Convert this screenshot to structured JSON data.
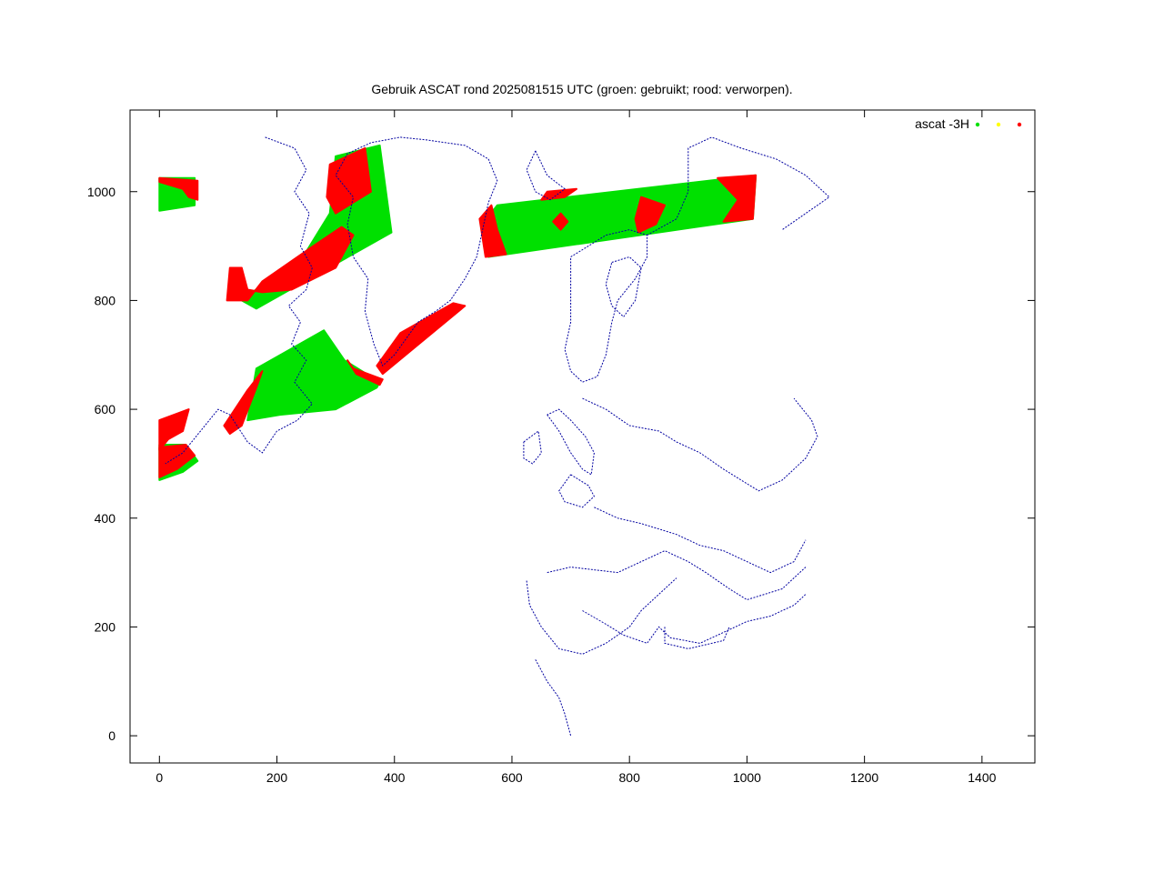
{
  "chart_data": {
    "type": "scatter",
    "title": "Gebruik ASCAT rond 2025081515 UTC (groen: gebruikt; rood: verworpen).",
    "xlabel": "",
    "ylabel": "",
    "xlim": [
      -50,
      1490
    ],
    "ylim": [
      -50,
      1150
    ],
    "x_ticks": [
      "0",
      "200",
      "400",
      "600",
      "800",
      "1000",
      "1200",
      "1400"
    ],
    "y_ticks": [
      "0",
      "200",
      "400",
      "600",
      "800",
      "1000"
    ],
    "grid": false,
    "legend_position": "top-right",
    "legend": {
      "label": "ascat -3H"
    },
    "series": [
      {
        "color": "#00e000"
      },
      {
        "color": "#ffff00"
      },
      {
        "color": "#ff0000"
      }
    ],
    "coastline_color": "#0000a0",
    "swaths": [
      {
        "status": "used",
        "polygon": [
          [
            0,
            1025
          ],
          [
            60,
            1025
          ],
          [
            60,
            975
          ],
          [
            0,
            965
          ]
        ]
      },
      {
        "status": "rejected",
        "polygon": [
          [
            0,
            1025
          ],
          [
            65,
            1020
          ],
          [
            65,
            985
          ],
          [
            50,
            990
          ],
          [
            40,
            1005
          ],
          [
            0,
            1018
          ]
        ]
      },
      {
        "status": "used",
        "polygon": [
          [
            300,
            1065
          ],
          [
            375,
            1085
          ],
          [
            395,
            925
          ],
          [
            165,
            785
          ],
          [
            140,
            800
          ],
          [
            250,
            890
          ],
          [
            290,
            960
          ]
        ]
      },
      {
        "status": "rejected",
        "polygon": [
          [
            120,
            860
          ],
          [
            140,
            860
          ],
          [
            150,
            820
          ],
          [
            175,
            815
          ],
          [
            225,
            820
          ],
          [
            300,
            860
          ],
          [
            330,
            920
          ],
          [
            310,
            935
          ],
          [
            255,
            895
          ],
          [
            175,
            835
          ],
          [
            150,
            800
          ],
          [
            115,
            800
          ]
        ]
      },
      {
        "status": "rejected",
        "polygon": [
          [
            290,
            1050
          ],
          [
            350,
            1080
          ],
          [
            360,
            1000
          ],
          [
            330,
            980
          ],
          [
            300,
            960
          ],
          [
            285,
            990
          ]
        ]
      },
      {
        "status": "used",
        "polygon": [
          [
            165,
            675
          ],
          [
            280,
            745
          ],
          [
            315,
            690
          ],
          [
            375,
            650
          ],
          [
            370,
            640
          ],
          [
            300,
            600
          ],
          [
            205,
            590
          ],
          [
            150,
            580
          ]
        ]
      },
      {
        "status": "rejected",
        "polygon": [
          [
            150,
            635
          ],
          [
            175,
            670
          ],
          [
            165,
            640
          ],
          [
            140,
            570
          ],
          [
            120,
            555
          ],
          [
            110,
            570
          ]
        ]
      },
      {
        "status": "rejected",
        "polygon": [
          [
            330,
            675
          ],
          [
            380,
            655
          ],
          [
            375,
            645
          ],
          [
            335,
            665
          ],
          [
            320,
            690
          ]
        ]
      },
      {
        "status": "rejected",
        "polygon": [
          [
            380,
            665
          ],
          [
            520,
            790
          ],
          [
            500,
            795
          ],
          [
            410,
            740
          ],
          [
            370,
            680
          ]
        ]
      },
      {
        "status": "used",
        "polygon": [
          [
            0,
            535
          ],
          [
            45,
            535
          ],
          [
            65,
            505
          ],
          [
            40,
            485
          ],
          [
            0,
            470
          ]
        ]
      },
      {
        "status": "rejected",
        "polygon": [
          [
            0,
            580
          ],
          [
            50,
            600
          ],
          [
            40,
            560
          ],
          [
            15,
            545
          ],
          [
            0,
            525
          ]
        ]
      },
      {
        "status": "rejected",
        "polygon": [
          [
            0,
            530
          ],
          [
            45,
            535
          ],
          [
            60,
            515
          ],
          [
            30,
            490
          ],
          [
            0,
            475
          ]
        ]
      },
      {
        "status": "used",
        "polygon": [
          [
            575,
            975
          ],
          [
            1015,
            1030
          ],
          [
            1010,
            950
          ],
          [
            560,
            880
          ],
          [
            550,
            940
          ]
        ]
      },
      {
        "status": "rejected",
        "polygon": [
          [
            565,
            975
          ],
          [
            575,
            930
          ],
          [
            590,
            885
          ],
          [
            555,
            880
          ],
          [
            545,
            950
          ]
        ]
      },
      {
        "status": "rejected",
        "polygon": [
          [
            950,
            1025
          ],
          [
            1015,
            1030
          ],
          [
            1010,
            950
          ],
          [
            960,
            945
          ],
          [
            985,
            985
          ]
        ]
      },
      {
        "status": "rejected",
        "polygon": [
          [
            820,
            990
          ],
          [
            860,
            975
          ],
          [
            845,
            940
          ],
          [
            815,
            925
          ],
          [
            810,
            950
          ]
        ]
      },
      {
        "status": "rejected",
        "polygon": [
          [
            660,
            1000
          ],
          [
            710,
            1005
          ],
          [
            690,
            990
          ],
          [
            650,
            985
          ]
        ]
      },
      {
        "status": "rejected",
        "polygon": [
          [
            683,
            960
          ],
          [
            695,
            945
          ],
          [
            683,
            930
          ],
          [
            670,
            945
          ]
        ]
      }
    ],
    "coastlines": [
      [
        [
          180,
          1100
        ],
        [
          230,
          1080
        ],
        [
          250,
          1040
        ],
        [
          230,
          1000
        ],
        [
          255,
          960
        ],
        [
          240,
          900
        ],
        [
          260,
          860
        ],
        [
          250,
          820
        ],
        [
          220,
          790
        ],
        [
          240,
          760
        ],
        [
          225,
          720
        ],
        [
          250,
          690
        ],
        [
          230,
          650
        ],
        [
          260,
          610
        ],
        [
          235,
          580
        ],
        [
          200,
          560
        ],
        [
          175,
          520
        ],
        [
          150,
          540
        ],
        [
          120,
          590
        ],
        [
          100,
          600
        ],
        [
          70,
          560
        ],
        [
          40,
          520
        ],
        [
          10,
          500
        ]
      ],
      [
        [
          410,
          1100
        ],
        [
          455,
          1095
        ],
        [
          520,
          1085
        ],
        [
          560,
          1060
        ],
        [
          575,
          1020
        ],
        [
          560,
          980
        ],
        [
          550,
          930
        ],
        [
          540,
          880
        ],
        [
          520,
          840
        ],
        [
          495,
          800
        ],
        [
          470,
          780
        ],
        [
          440,
          760
        ],
        [
          420,
          730
        ],
        [
          400,
          700
        ],
        [
          380,
          680
        ],
        [
          365,
          720
        ],
        [
          350,
          780
        ],
        [
          355,
          840
        ],
        [
          330,
          880
        ],
        [
          320,
          940
        ],
        [
          330,
          990
        ],
        [
          300,
          1030
        ],
        [
          320,
          1070
        ],
        [
          360,
          1090
        ],
        [
          410,
          1100
        ]
      ],
      [
        [
          640,
          1075
        ],
        [
          660,
          1030
        ],
        [
          690,
          1005
        ],
        [
          665,
          985
        ],
        [
          640,
          1000
        ],
        [
          625,
          1040
        ],
        [
          640,
          1075
        ]
      ],
      [
        [
          700,
          880
        ],
        [
          730,
          900
        ],
        [
          760,
          920
        ],
        [
          800,
          930
        ],
        [
          830,
          920
        ],
        [
          830,
          880
        ],
        [
          810,
          840
        ],
        [
          780,
          800
        ],
        [
          770,
          760
        ],
        [
          760,
          700
        ],
        [
          745,
          660
        ],
        [
          720,
          650
        ],
        [
          700,
          670
        ],
        [
          690,
          710
        ],
        [
          700,
          760
        ],
        [
          700,
          820
        ],
        [
          700,
          880
        ]
      ],
      [
        [
          770,
          870
        ],
        [
          800,
          880
        ],
        [
          820,
          860
        ],
        [
          810,
          800
        ],
        [
          790,
          770
        ],
        [
          770,
          790
        ],
        [
          760,
          830
        ],
        [
          770,
          870
        ]
      ],
      [
        [
          830,
          920
        ],
        [
          880,
          950
        ],
        [
          900,
          1000
        ],
        [
          900,
          1080
        ],
        [
          940,
          1100
        ],
        [
          990,
          1080
        ],
        [
          1050,
          1060
        ],
        [
          1100,
          1030
        ],
        [
          1140,
          990
        ],
        [
          1100,
          960
        ],
        [
          1060,
          930
        ]
      ],
      [
        [
          720,
          620
        ],
        [
          760,
          600
        ],
        [
          800,
          570
        ],
        [
          850,
          560
        ],
        [
          880,
          540
        ],
        [
          920,
          520
        ],
        [
          960,
          490
        ],
        [
          990,
          470
        ],
        [
          1020,
          450
        ],
        [
          1060,
          470
        ],
        [
          1100,
          510
        ],
        [
          1120,
          550
        ],
        [
          1110,
          580
        ],
        [
          1080,
          620
        ]
      ],
      [
        [
          660,
          590
        ],
        [
          680,
          560
        ],
        [
          700,
          520
        ],
        [
          720,
          490
        ],
        [
          735,
          480
        ],
        [
          740,
          520
        ],
        [
          725,
          550
        ],
        [
          700,
          580
        ],
        [
          680,
          600
        ],
        [
          660,
          590
        ]
      ],
      [
        [
          620,
          540
        ],
        [
          645,
          560
        ],
        [
          650,
          520
        ],
        [
          635,
          500
        ],
        [
          620,
          510
        ],
        [
          620,
          540
        ]
      ],
      [
        [
          700,
          480
        ],
        [
          730,
          460
        ],
        [
          740,
          440
        ],
        [
          720,
          420
        ],
        [
          690,
          430
        ],
        [
          680,
          450
        ],
        [
          700,
          480
        ]
      ],
      [
        [
          740,
          420
        ],
        [
          780,
          400
        ],
        [
          820,
          390
        ],
        [
          850,
          380
        ],
        [
          880,
          370
        ],
        [
          920,
          350
        ],
        [
          960,
          340
        ],
        [
          1000,
          320
        ],
        [
          1040,
          300
        ],
        [
          1080,
          320
        ],
        [
          1100,
          360
        ]
      ],
      [
        [
          660,
          300
        ],
        [
          700,
          310
        ],
        [
          740,
          305
        ],
        [
          780,
          300
        ],
        [
          820,
          320
        ],
        [
          860,
          340
        ],
        [
          900,
          320
        ],
        [
          930,
          300
        ],
        [
          970,
          270
        ],
        [
          1000,
          250
        ],
        [
          1060,
          270
        ],
        [
          1100,
          310
        ]
      ],
      [
        [
          625,
          285
        ],
        [
          630,
          240
        ],
        [
          650,
          200
        ],
        [
          680,
          160
        ],
        [
          720,
          150
        ],
        [
          760,
          170
        ],
        [
          800,
          200
        ],
        [
          820,
          230
        ],
        [
          850,
          260
        ],
        [
          880,
          290
        ]
      ],
      [
        [
          640,
          140
        ],
        [
          660,
          100
        ],
        [
          680,
          70
        ],
        [
          690,
          40
        ],
        [
          700,
          0
        ]
      ],
      [
        [
          720,
          230
        ],
        [
          760,
          205
        ],
        [
          790,
          185
        ],
        [
          830,
          170
        ],
        [
          850,
          200
        ],
        [
          870,
          180
        ],
        [
          920,
          170
        ],
        [
          960,
          190
        ],
        [
          1000,
          210
        ],
        [
          1040,
          220
        ],
        [
          1080,
          240
        ],
        [
          1100,
          260
        ]
      ],
      [
        [
          860,
          200
        ],
        [
          860,
          170
        ],
        [
          900,
          160
        ],
        [
          960,
          175
        ],
        [
          970,
          200
        ]
      ]
    ]
  }
}
